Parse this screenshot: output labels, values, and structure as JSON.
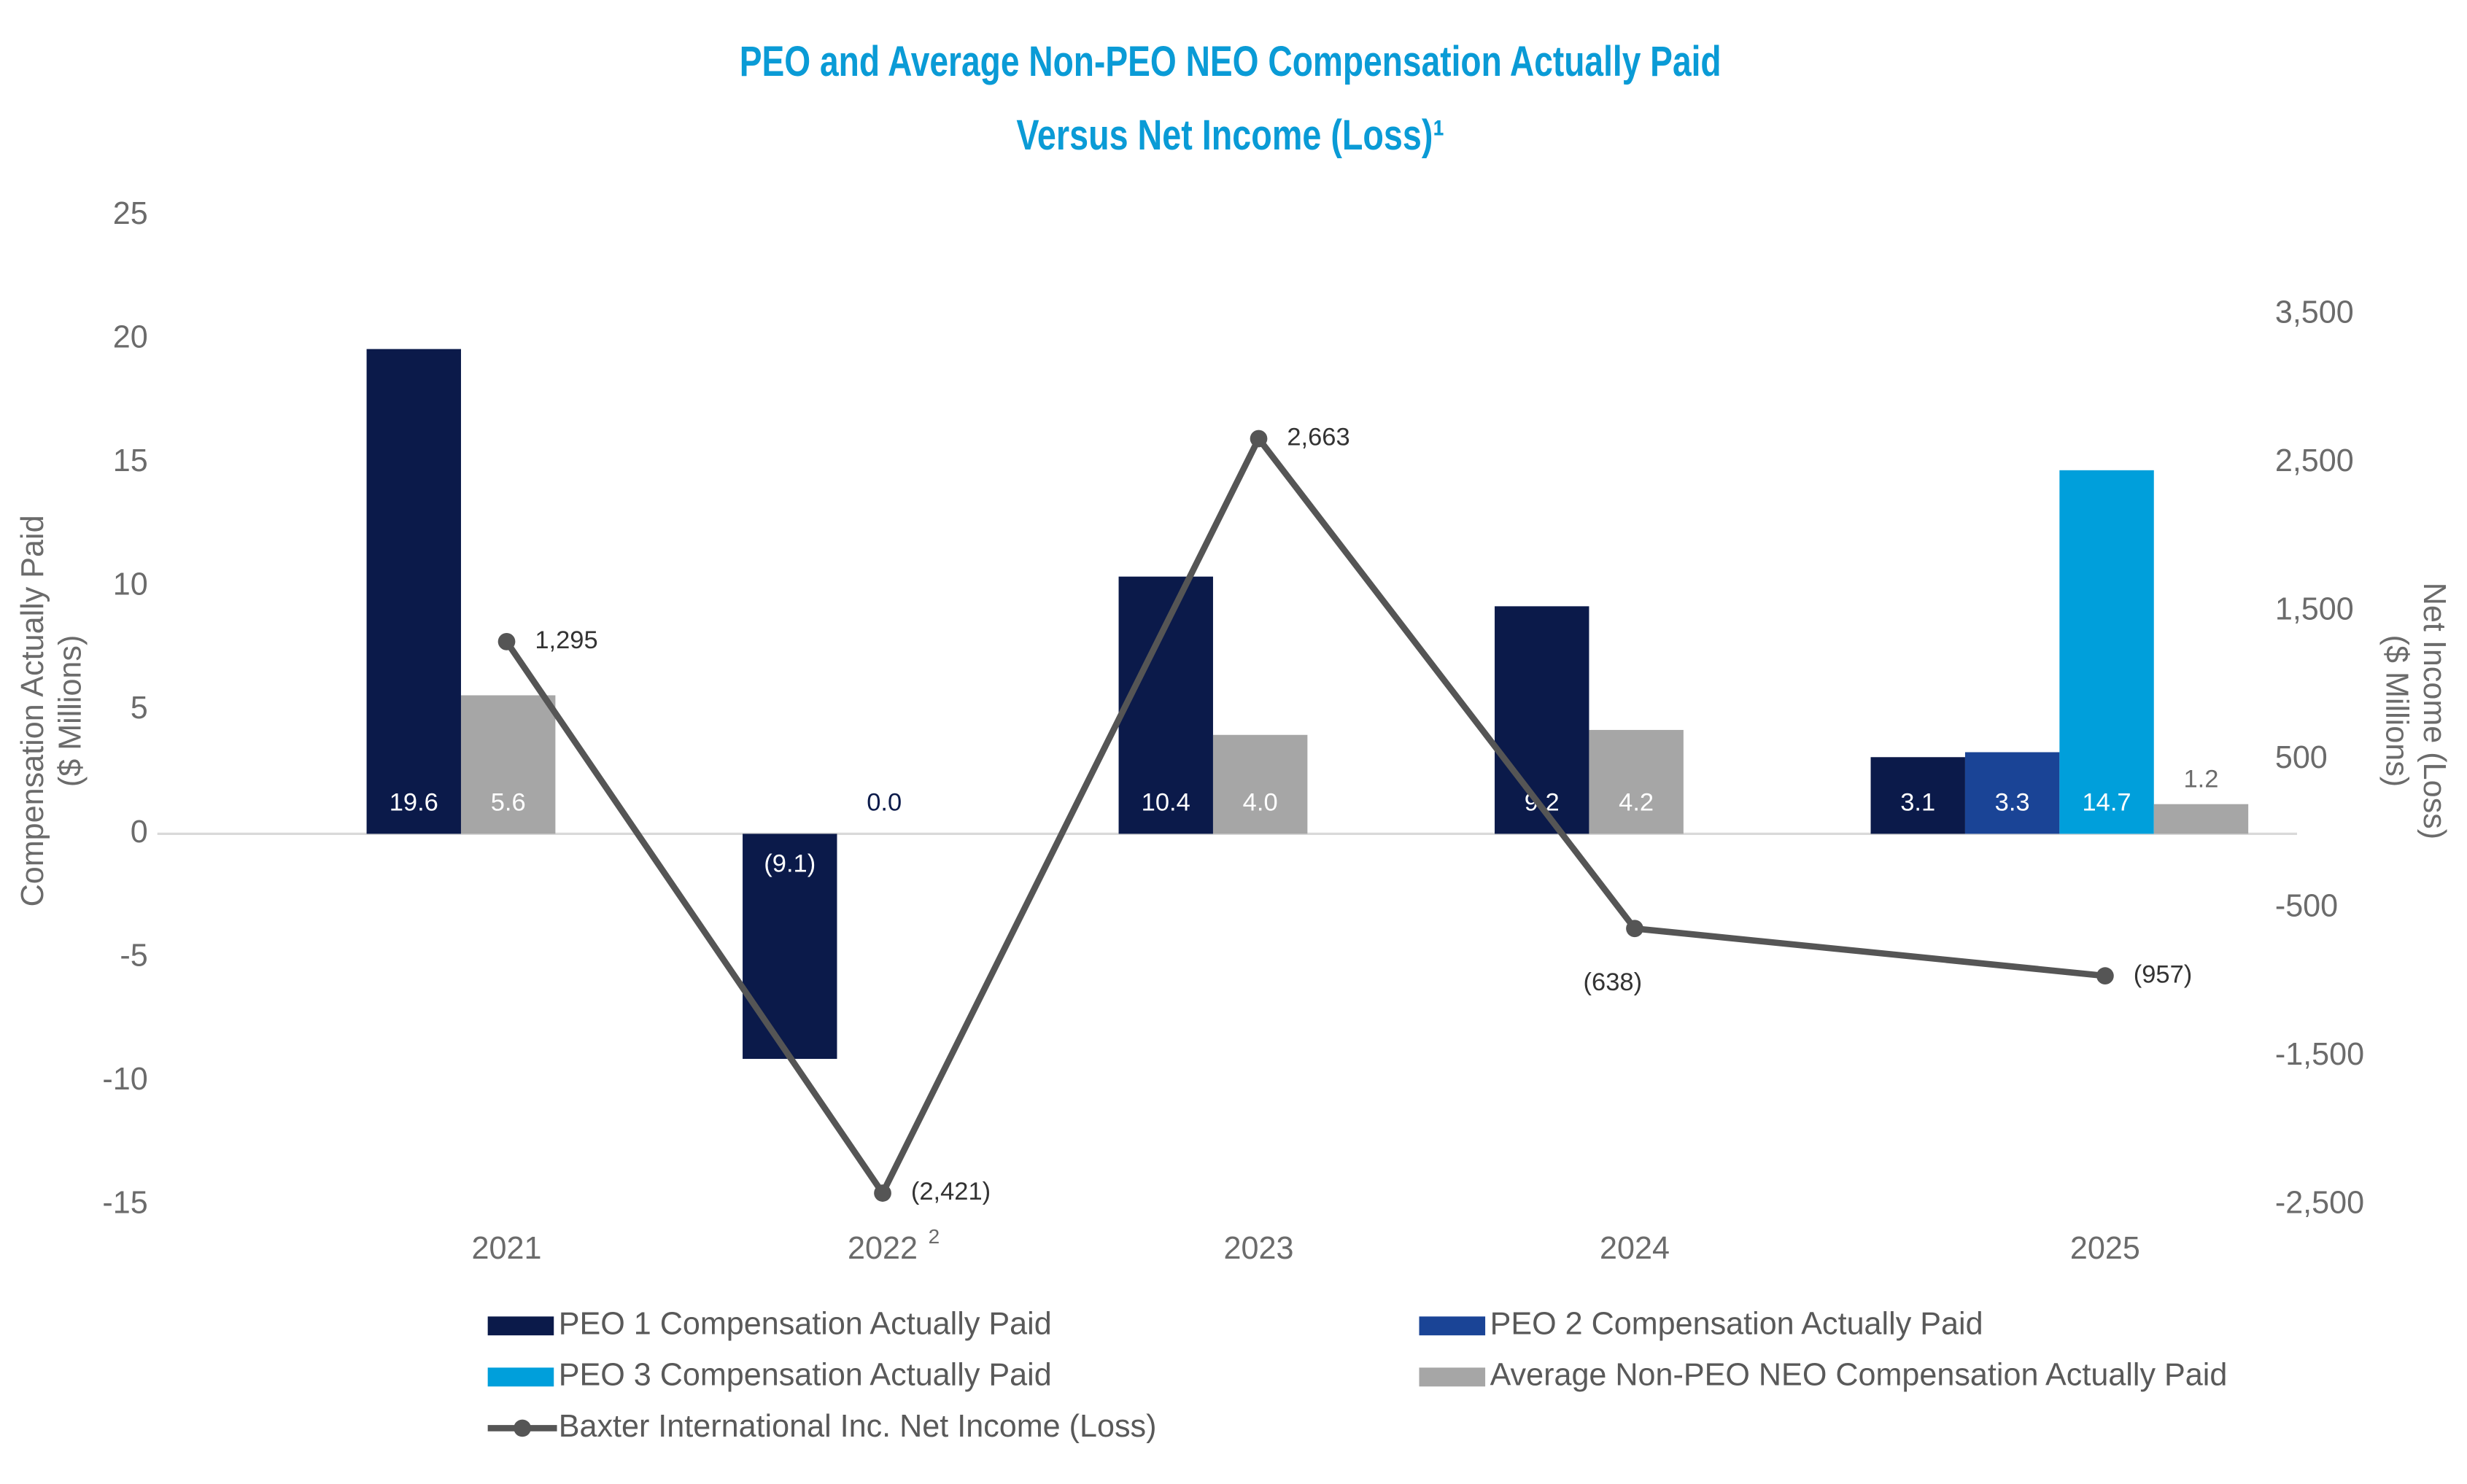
{
  "chart_data": {
    "type": "bar",
    "title": "PEO and Average Non-PEO NEO Compensation Actually Paid",
    "subtitle": "Versus Net Income (Loss)¹",
    "categories": [
      "2021",
      "2022",
      "2023",
      "2024",
      "2025"
    ],
    "category_superscripts": [
      null,
      "2",
      null,
      null,
      null
    ],
    "y_label": [
      "Compensation Actually Paid",
      "($ Millions)"
    ],
    "y2_label": [
      "Net Income (Loss)",
      "($ Millions)"
    ],
    "ylim": [
      -15,
      25
    ],
    "yticks": [
      -15,
      -10,
      -5,
      0,
      5,
      10,
      15,
      20,
      25
    ],
    "y2lim": [
      -2500,
      4166.7
    ],
    "y2ticks": [
      {
        "value": -2500,
        "label": "-2,500"
      },
      {
        "value": -1500,
        "label": "-1,500"
      },
      -500,
      500,
      {
        "value": 1500,
        "label": "1,500"
      },
      {
        "value": 2500,
        "label": "2,500"
      },
      {
        "value": 3500,
        "label": "3,500"
      }
    ],
    "series": [
      {
        "name": "PEO 1 Compensation Actually Paid",
        "type": "bar",
        "color": "#0b1a4a",
        "values": [
          19.6,
          -9.1,
          10.4,
          9.2,
          3.1
        ],
        "value_labels": [
          "19.6",
          "(9.1)",
          "10.4",
          "9.2",
          "3.1"
        ]
      },
      {
        "name": "PEO 2 Compensation Actually Paid",
        "type": "bar",
        "color": "#1a4496",
        "values": [
          null,
          null,
          null,
          null,
          3.3
        ],
        "value_labels": [
          null,
          null,
          null,
          null,
          "3.3"
        ]
      },
      {
        "name": "PEO 3 Compensation Actually Paid",
        "type": "bar",
        "color": "#009fdb",
        "values": [
          null,
          null,
          null,
          null,
          14.7
        ],
        "value_labels": [
          null,
          null,
          null,
          null,
          "14.7"
        ]
      },
      {
        "name": "Average Non-PEO NEO Compensation Actually Paid",
        "type": "bar",
        "color": "#a6a6a6",
        "values": [
          5.6,
          0,
          4.0,
          4.2,
          1.2
        ],
        "value_labels": [
          "5.6",
          "0.0",
          "4.0",
          "4.2",
          "1.2"
        ]
      },
      {
        "name": "Baxter International Inc. Net Income (Loss)",
        "type": "line",
        "axis": "y2",
        "color": "#555555",
        "values": [
          1295,
          -2421,
          2663,
          -638,
          -957
        ],
        "value_labels": [
          "1,295",
          "(2,421)",
          "2,663",
          "(638)",
          "(957)"
        ]
      }
    ]
  }
}
